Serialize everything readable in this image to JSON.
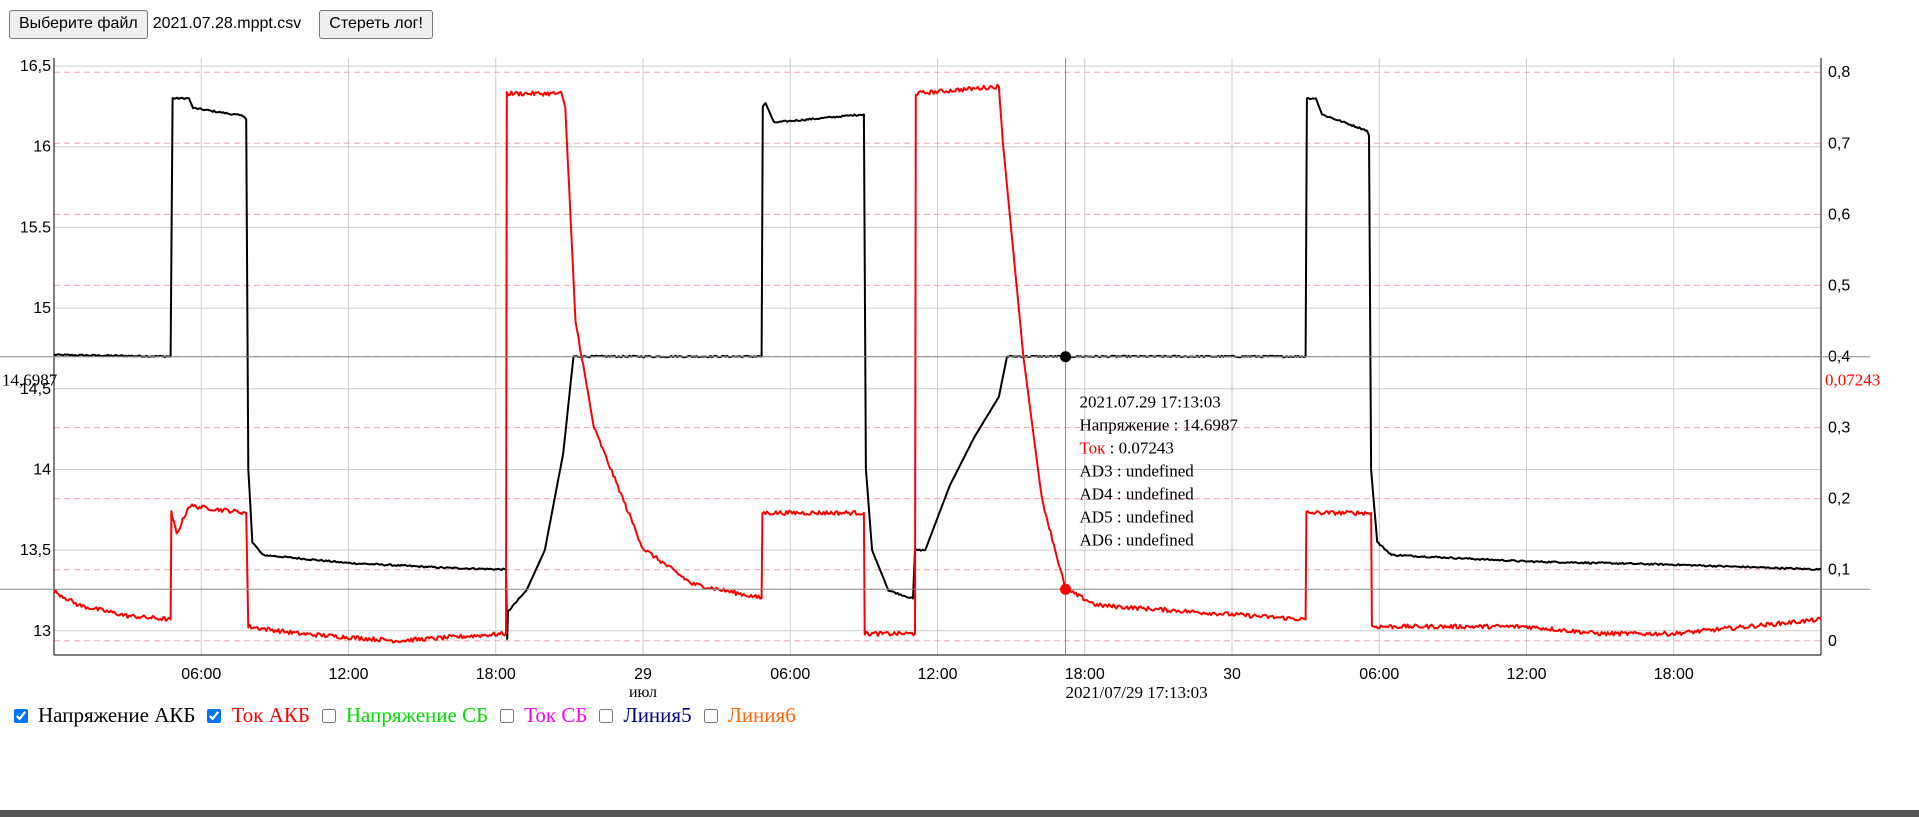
{
  "toolbar": {
    "file_button": "Выберите файл",
    "file_name": "2021.07.28.mppt.csv",
    "clear_button": "Стереть лог!"
  },
  "legend": [
    {
      "label": "Напряжение АКБ",
      "checked": true,
      "color": "#000000"
    },
    {
      "label": "Ток АКБ",
      "checked": true,
      "color": "#ff0000"
    },
    {
      "label": "Напряжение СБ",
      "checked": false,
      "color": "#00dd00"
    },
    {
      "label": "Ток СБ",
      "checked": false,
      "color": "#ff00ff"
    },
    {
      "label": "Линия5",
      "checked": false,
      "color": "#000080"
    },
    {
      "label": "Линия6",
      "checked": false,
      "color": "#ff6600"
    }
  ],
  "tooltip": {
    "time": "2021.07.29 17:13:03",
    "lines": [
      {
        "label": "Напряжение",
        "value": " : 14.6987",
        "color": "#000000"
      },
      {
        "label": "Ток",
        "value": " : 0.07243",
        "color": "#ff0000"
      },
      {
        "label": "AD3",
        "value": " : undefined",
        "color": "#000000"
      },
      {
        "label": "AD4",
        "value": " : undefined",
        "color": "#000000"
      },
      {
        "label": "AD5",
        "value": " : undefined",
        "color": "#000000"
      },
      {
        "label": "AD6",
        "value": " : undefined",
        "color": "#000000"
      }
    ]
  },
  "chart_data": {
    "type": "line",
    "x_range": [
      "2021-07-28 00:00",
      "2021-07-31 00:00"
    ],
    "x_ticks": [
      "06:00",
      "12:00",
      "18:00",
      "29",
      "06:00",
      "12:00",
      "18:00",
      "30",
      "06:00",
      "12:00",
      "18:00"
    ],
    "x_month_label": "июл",
    "y_left": {
      "range": [
        12.85,
        16.55
      ],
      "ticks": [
        "13",
        "13,5",
        "14",
        "14,5",
        "15",
        "15.5",
        "16",
        "16,5"
      ]
    },
    "y_right": {
      "range": [
        -0.02,
        0.82
      ],
      "ticks": [
        "0",
        "0,1",
        "0,2",
        "0,3",
        "0,4",
        "0,5",
        "0,6",
        "0,7",
        "0,8"
      ]
    },
    "crosshair": {
      "time": "2021-07-29 17:13:03",
      "time_label": "2021/07/29 17:13:03",
      "left_value": 14.6987,
      "left_label": "14,6987",
      "right_value": 0.07243,
      "right_label": "0,07243"
    },
    "series": [
      {
        "name": "Напряжение АКБ",
        "axis": "left",
        "color": "#000000",
        "noise": 0.01,
        "points": [
          [
            "2021-07-28 00:00",
            14.71
          ],
          [
            "2021-07-28 04:45",
            14.7
          ],
          [
            "2021-07-28 04:50",
            16.3
          ],
          [
            "2021-07-28 05:30",
            16.3
          ],
          [
            "2021-07-28 05:40",
            16.24
          ],
          [
            "2021-07-28 07:45",
            16.19
          ],
          [
            "2021-07-28 07:50",
            16.17
          ],
          [
            "2021-07-28 07:55",
            14.0
          ],
          [
            "2021-07-28 08:05",
            13.55
          ],
          [
            "2021-07-28 08:30",
            13.47
          ],
          [
            "2021-07-28 12:00",
            13.42
          ],
          [
            "2021-07-28 16:00",
            13.39
          ],
          [
            "2021-07-28 18:25",
            13.38
          ],
          [
            "2021-07-28 18:28",
            12.95
          ],
          [
            "2021-07-28 18:30",
            13.12
          ],
          [
            "2021-07-28 19:15",
            13.25
          ],
          [
            "2021-07-28 20:00",
            13.5
          ],
          [
            "2021-07-28 20:45",
            14.1
          ],
          [
            "2021-07-28 21:10",
            14.7
          ],
          [
            "2021-07-29 04:50",
            14.7
          ],
          [
            "2021-07-29 04:53",
            16.25
          ],
          [
            "2021-07-29 05:00",
            16.27
          ],
          [
            "2021-07-29 05:20",
            16.15
          ],
          [
            "2021-07-29 08:55",
            16.2
          ],
          [
            "2021-07-29 09:00",
            16.2
          ],
          [
            "2021-07-29 09:05",
            14.0
          ],
          [
            "2021-07-29 09:20",
            13.5
          ],
          [
            "2021-07-29 10:00",
            13.25
          ],
          [
            "2021-07-29 11:00",
            13.2
          ],
          [
            "2021-07-29 11:05",
            13.5
          ],
          [
            "2021-07-29 11:30",
            13.5
          ],
          [
            "2021-07-29 12:30",
            13.9
          ],
          [
            "2021-07-29 13:30",
            14.2
          ],
          [
            "2021-07-29 14:30",
            14.45
          ],
          [
            "2021-07-29 14:50",
            14.7
          ],
          [
            "2021-07-30 03:00",
            14.7
          ],
          [
            "2021-07-30 03:03",
            16.3
          ],
          [
            "2021-07-30 03:25",
            16.3
          ],
          [
            "2021-07-30 03:40",
            16.2
          ],
          [
            "2021-07-30 05:30",
            16.1
          ],
          [
            "2021-07-30 05:35",
            16.07
          ],
          [
            "2021-07-30 05:40",
            14.0
          ],
          [
            "2021-07-30 05:55",
            13.55
          ],
          [
            "2021-07-30 06:30",
            13.47
          ],
          [
            "2021-07-30 12:00",
            13.43
          ],
          [
            "2021-07-30 18:00",
            13.41
          ],
          [
            "2021-07-31 00:00",
            13.38
          ]
        ]
      },
      {
        "name": "Ток АКБ",
        "axis": "right",
        "color": "#ff0000",
        "noise": 0.006,
        "points": [
          [
            "2021-07-28 00:00",
            0.07
          ],
          [
            "2021-07-28 01:00",
            0.05
          ],
          [
            "2021-07-28 03:00",
            0.035
          ],
          [
            "2021-07-28 04:45",
            0.03
          ],
          [
            "2021-07-28 04:47",
            0.18
          ],
          [
            "2021-07-28 05:00",
            0.15
          ],
          [
            "2021-07-28 05:30",
            0.19
          ],
          [
            "2021-07-28 07:50",
            0.18
          ],
          [
            "2021-07-28 07:55",
            0.02
          ],
          [
            "2021-07-28 10:00",
            0.01
          ],
          [
            "2021-07-28 14:00",
            0.0
          ],
          [
            "2021-07-28 18:25",
            0.01
          ],
          [
            "2021-07-28 18:27",
            0.77
          ],
          [
            "2021-07-28 20:40",
            0.77
          ],
          [
            "2021-07-28 20:50",
            0.75
          ],
          [
            "2021-07-28 21:15",
            0.45
          ],
          [
            "2021-07-28 22:00",
            0.3
          ],
          [
            "2021-07-29 00:00",
            0.13
          ],
          [
            "2021-07-29 02:00",
            0.08
          ],
          [
            "2021-07-29 04:50",
            0.06
          ],
          [
            "2021-07-29 04:52",
            0.18
          ],
          [
            "2021-07-29 09:00",
            0.18
          ],
          [
            "2021-07-29 09:02",
            0.01
          ],
          [
            "2021-07-29 11:05",
            0.01
          ],
          [
            "2021-07-29 11:07",
            0.77
          ],
          [
            "2021-07-29 14:30",
            0.78
          ],
          [
            "2021-07-29 14:40",
            0.7
          ],
          [
            "2021-07-29 15:30",
            0.4
          ],
          [
            "2021-07-29 16:15",
            0.2
          ],
          [
            "2021-07-29 17:13",
            0.07243
          ],
          [
            "2021-07-29 18:30",
            0.05
          ],
          [
            "2021-07-30 03:00",
            0.03
          ],
          [
            "2021-07-30 03:02",
            0.18
          ],
          [
            "2021-07-30 05:40",
            0.18
          ],
          [
            "2021-07-30 05:42",
            0.02
          ],
          [
            "2021-07-30 08:00",
            0.02
          ],
          [
            "2021-07-30 12:00",
            0.02
          ],
          [
            "2021-07-30 15:00",
            0.01
          ],
          [
            "2021-07-30 18:00",
            0.01
          ],
          [
            "2021-07-31 00:00",
            0.03
          ]
        ]
      }
    ]
  }
}
